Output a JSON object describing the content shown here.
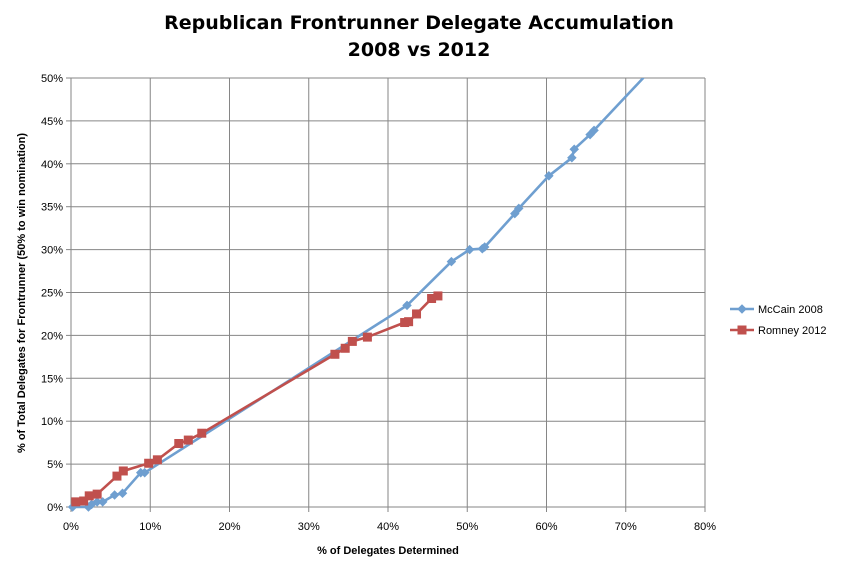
{
  "chart_data": {
    "type": "line",
    "title": "Republican Frontrunner Delegate Accumulation",
    "subtitle": "2008 vs 2012",
    "xlabel": "% of Delegates Determined",
    "ylabel": "% of Total Delegates for Frontrunner (50% to win nomination)",
    "xlim": [
      0,
      80
    ],
    "ylim": [
      0,
      50
    ],
    "x_ticks": [
      "0%",
      "10%",
      "20%",
      "30%",
      "40%",
      "50%",
      "60%",
      "70%",
      "80%"
    ],
    "y_ticks": [
      "0%",
      "5%",
      "10%",
      "15%",
      "20%",
      "25%",
      "30%",
      "35%",
      "40%",
      "45%",
      "50%"
    ],
    "grid": true,
    "legend_position": "right",
    "series": [
      {
        "name": "McCain 2008",
        "color": "#6f9fd0",
        "marker": "diamond",
        "points": [
          [
            0.2,
            0.0
          ],
          [
            2.2,
            0.0
          ],
          [
            2.6,
            0.3
          ],
          [
            3.3,
            0.6
          ],
          [
            4.0,
            0.6
          ],
          [
            5.5,
            1.4
          ],
          [
            6.5,
            1.6
          ],
          [
            8.8,
            4.0
          ],
          [
            9.3,
            4.0
          ],
          [
            42.4,
            23.5
          ],
          [
            48.0,
            28.6
          ],
          [
            50.3,
            30.0
          ],
          [
            51.9,
            30.1
          ],
          [
            52.2,
            30.3
          ],
          [
            56.0,
            34.2
          ],
          [
            56.5,
            34.8
          ],
          [
            60.3,
            38.6
          ],
          [
            63.2,
            40.7
          ],
          [
            63.5,
            41.7
          ],
          [
            65.5,
            43.4
          ],
          [
            66.0,
            43.9
          ],
          [
            72.2,
            50.0
          ]
        ]
      },
      {
        "name": "Romney 2012",
        "color": "#c0504d",
        "marker": "square",
        "points": [
          [
            0.6,
            0.6
          ],
          [
            1.6,
            0.7
          ],
          [
            2.3,
            1.3
          ],
          [
            3.3,
            1.5
          ],
          [
            5.8,
            3.6
          ],
          [
            6.6,
            4.2
          ],
          [
            9.8,
            5.1
          ],
          [
            10.9,
            5.5
          ],
          [
            13.6,
            7.4
          ],
          [
            14.8,
            7.8
          ],
          [
            16.5,
            8.6
          ],
          [
            33.3,
            17.8
          ],
          [
            34.6,
            18.5
          ],
          [
            35.5,
            19.3
          ],
          [
            37.4,
            19.8
          ],
          [
            42.1,
            21.5
          ],
          [
            42.6,
            21.6
          ],
          [
            43.6,
            22.5
          ],
          [
            45.5,
            24.3
          ],
          [
            46.3,
            24.6
          ]
        ]
      }
    ]
  }
}
